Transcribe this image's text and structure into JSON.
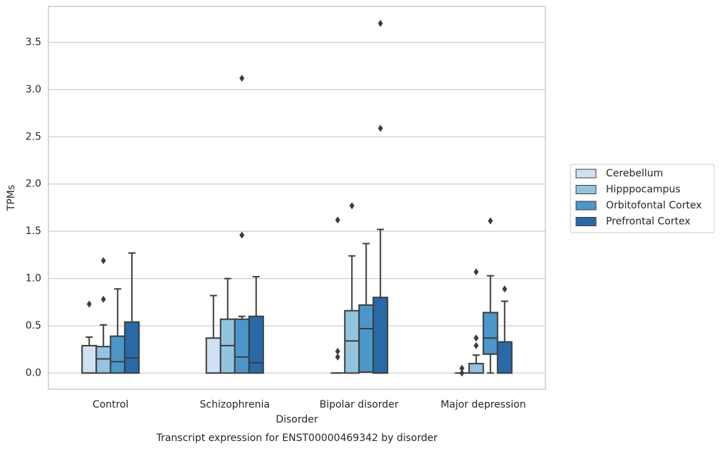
{
  "chart_data": {
    "type": "box",
    "title": "Transcript expression for ENST00000469342 by disorder",
    "x_label": "Disorder",
    "y_label": "TPMs",
    "categories": [
      "Control",
      "Schizophrenia",
      "Bipolar disorder",
      "Major depression"
    ],
    "ylim": [
      -0.17,
      3.88
    ],
    "yticks": [
      {
        "value": 0,
        "label": "0.0"
      },
      0.5,
      {
        "value": 1,
        "label": "1.0"
      },
      1.5,
      {
        "value": 2,
        "label": "2.0"
      },
      2.5,
      {
        "value": 3,
        "label": "3.0"
      },
      3.5
    ],
    "grid": true,
    "legend": "center right",
    "series": [
      {
        "name": "Cerebellum",
        "color": "#cfe1f2",
        "whislo": [
          0,
          0,
          0,
          0
        ],
        "q1": [
          0,
          0,
          0,
          0
        ],
        "median": [
          0,
          0,
          0,
          0
        ],
        "q3": [
          0.29,
          0.37,
          0,
          0
        ],
        "whishi": [
          0.38,
          0.82,
          0,
          0
        ],
        "outliers": [
          [
            0.73
          ],
          [],
          [
            0.23,
            0.17,
            1.62
          ],
          [
            0.05,
            0
          ]
        ]
      },
      {
        "name": "Hipppocampus",
        "color": "#93c4de",
        "whislo": [
          0,
          0,
          0,
          0
        ],
        "q1": [
          0,
          0,
          0,
          0
        ],
        "median": [
          0.15,
          0.29,
          0.34,
          0
        ],
        "q3": [
          0.28,
          0.57,
          0.66,
          0.1
        ],
        "whishi": [
          0.51,
          1.0,
          1.24,
          0.19
        ],
        "outliers": [
          [
            0.78,
            1.19
          ],
          [],
          [
            1.77
          ],
          [
            0.37,
            0.29,
            1.07
          ]
        ]
      },
      {
        "name": "Orbitofontal Cortex",
        "color": "#4b97c9",
        "whislo": [
          0,
          0,
          0.01,
          0
        ],
        "q1": [
          0,
          0,
          0.01,
          0.2
        ],
        "median": [
          0.12,
          0.17,
          0.47,
          0.37
        ],
        "q3": [
          0.39,
          0.57,
          0.72,
          0.64
        ],
        "whishi": [
          0.89,
          0.6,
          1.37,
          1.03
        ],
        "outliers": [
          [],
          [
            1.46,
            3.12
          ],
          [],
          [
            1.61
          ]
        ]
      },
      {
        "name": "Prefrontal Cortex",
        "color": "#2a69a8",
        "whislo": [
          0,
          0,
          0,
          0
        ],
        "q1": [
          0,
          0,
          0,
          0
        ],
        "median": [
          0.16,
          0.11,
          0,
          0
        ],
        "q3": [
          0.54,
          0.6,
          0.8,
          0.33
        ],
        "whishi": [
          1.27,
          1.02,
          1.52,
          0.76
        ],
        "outliers": [
          [],
          [],
          [
            2.59,
            3.7
          ],
          [
            0.89
          ]
        ]
      }
    ]
  }
}
